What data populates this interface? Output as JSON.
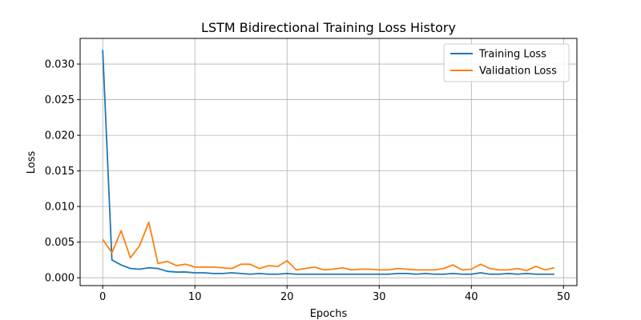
{
  "chart_data": {
    "type": "line",
    "title": "LSTM Bidirectional Training Loss History",
    "xlabel": "Epochs",
    "ylabel": "Loss",
    "xlim": [
      -2.45,
      51.45
    ],
    "ylim": [
      -0.0011,
      0.0336
    ],
    "xticks": [
      0,
      10,
      20,
      30,
      40,
      50
    ],
    "xtick_labels": [
      "0",
      "10",
      "20",
      "30",
      "40",
      "50"
    ],
    "yticks": [
      0.0,
      0.005,
      0.01,
      0.015,
      0.02,
      0.025,
      0.03
    ],
    "ytick_labels": [
      "0.000",
      "0.005",
      "0.010",
      "0.015",
      "0.020",
      "0.025",
      "0.030"
    ],
    "grid": true,
    "legend_position": "top-right",
    "x": [
      0,
      1,
      2,
      3,
      4,
      5,
      6,
      7,
      8,
      9,
      10,
      11,
      12,
      13,
      14,
      15,
      16,
      17,
      18,
      19,
      20,
      21,
      22,
      23,
      24,
      25,
      26,
      27,
      28,
      29,
      30,
      31,
      32,
      33,
      34,
      35,
      36,
      37,
      38,
      39,
      40,
      41,
      42,
      43,
      44,
      45,
      46,
      47,
      48,
      49
    ],
    "series": [
      {
        "name": "Training Loss",
        "color": "#1f77b4",
        "values": [
          0.032,
          0.0025,
          0.0018,
          0.0013,
          0.0012,
          0.0014,
          0.0013,
          0.0009,
          0.0008,
          0.0008,
          0.0007,
          0.0007,
          0.0006,
          0.0006,
          0.0007,
          0.0006,
          0.0005,
          0.0006,
          0.0005,
          0.0005,
          0.0006,
          0.0005,
          0.0005,
          0.0005,
          0.0005,
          0.0005,
          0.0005,
          0.0005,
          0.0005,
          0.0005,
          0.0005,
          0.0005,
          0.0006,
          0.0006,
          0.0005,
          0.0006,
          0.0005,
          0.0005,
          0.0006,
          0.0005,
          0.0005,
          0.0007,
          0.0005,
          0.0005,
          0.0006,
          0.0005,
          0.0006,
          0.0005,
          0.0005,
          0.0005
        ]
      },
      {
        "name": "Validation Loss",
        "color": "#ff7f0e",
        "values": [
          0.0054,
          0.0035,
          0.0066,
          0.0028,
          0.0045,
          0.0078,
          0.002,
          0.0023,
          0.0017,
          0.0019,
          0.0015,
          0.0015,
          0.0015,
          0.0014,
          0.0013,
          0.0019,
          0.0019,
          0.0013,
          0.0017,
          0.0016,
          0.0024,
          0.0011,
          0.0013,
          0.0015,
          0.0011,
          0.0012,
          0.0014,
          0.0011,
          0.0012,
          0.0012,
          0.0011,
          0.0011,
          0.0013,
          0.0012,
          0.0011,
          0.0011,
          0.0011,
          0.0013,
          0.0018,
          0.0011,
          0.0012,
          0.0019,
          0.0013,
          0.0011,
          0.0011,
          0.0013,
          0.001,
          0.0016,
          0.0011,
          0.0014
        ]
      }
    ]
  }
}
